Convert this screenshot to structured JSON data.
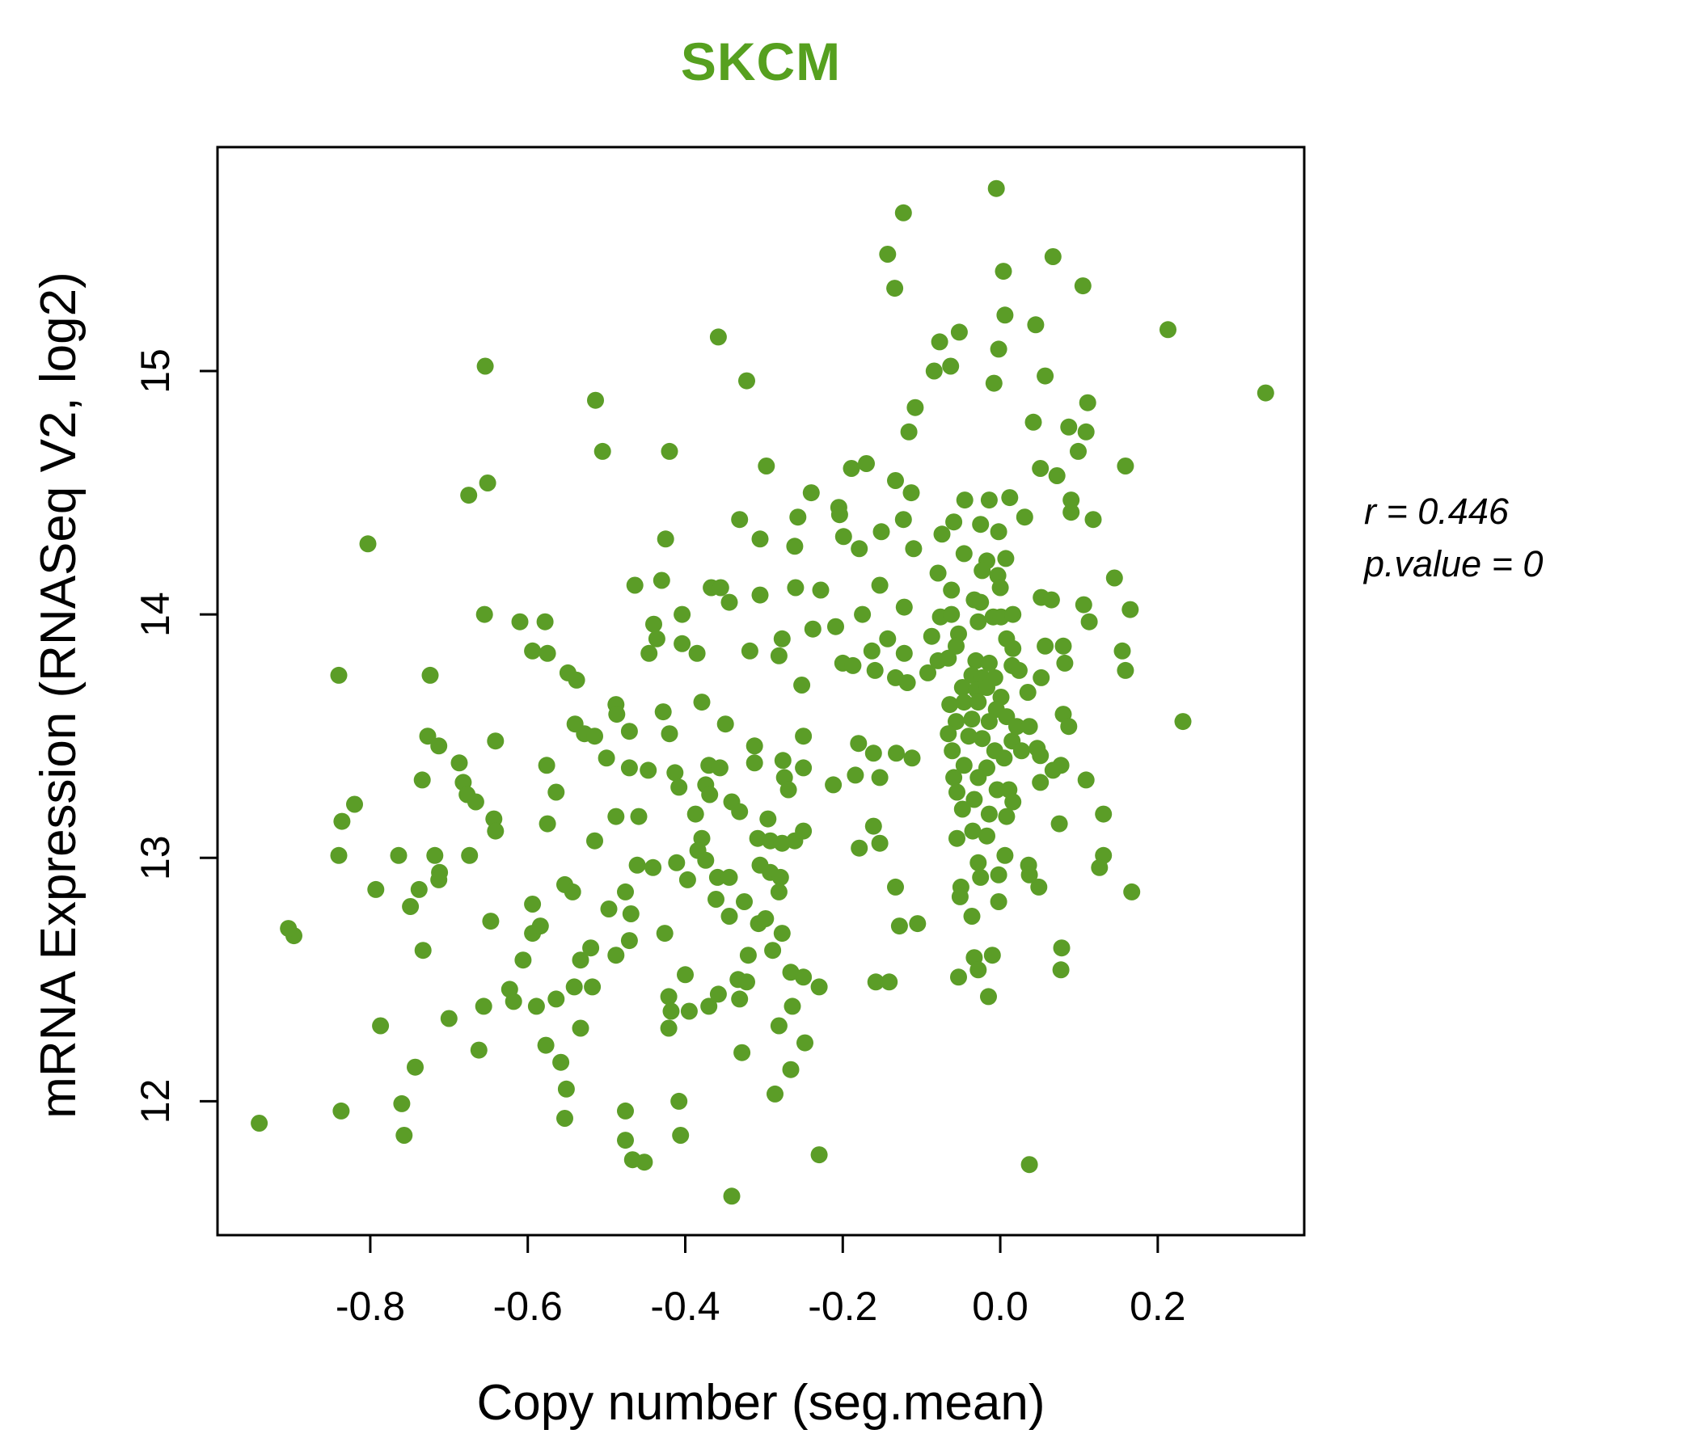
{
  "title": "SKCM",
  "title_color": "#56a01f",
  "annotation": {
    "line1": "r = 0.446",
    "line2": "p.value = 0"
  },
  "chart_data": {
    "type": "scatter",
    "title": "SKCM",
    "xlabel": "Copy number (seg.mean)",
    "ylabel": "mRNA Expression (RNASeq V2, log2)",
    "xlim": [
      -0.994,
      0.386
    ],
    "ylim": [
      11.45,
      15.92
    ],
    "x_ticks": [
      -0.8,
      -0.6,
      -0.4,
      -0.2,
      0.0,
      0.2
    ],
    "x_tick_labels": [
      "-0.8",
      "-0.6",
      "-0.4",
      "-0.2",
      "0.0",
      "0.2"
    ],
    "y_ticks": [
      12,
      13,
      14,
      15
    ],
    "y_tick_labels": [
      "12",
      "13",
      "14",
      "15"
    ],
    "grid": false,
    "legend": "none",
    "point_color": "#5b9d27",
    "point_radius_px": 10.5,
    "correlation": {
      "r": 0.446,
      "p_value": 0
    },
    "points": [
      [
        -0.654,
        15.02
      ],
      [
        -0.651,
        14.54
      ],
      [
        -0.675,
        14.49
      ],
      [
        -0.123,
        15.65
      ],
      [
        -0.143,
        15.48
      ],
      [
        -0.134,
        15.34
      ],
      [
        -0.358,
        15.14
      ],
      [
        -0.077,
        15.12
      ],
      [
        -0.084,
        15.0
      ],
      [
        -0.322,
        14.96
      ],
      [
        -0.514,
        14.88
      ],
      [
        -0.108,
        14.85
      ],
      [
        -0.116,
        14.75
      ],
      [
        -0.505,
        14.67
      ],
      [
        -0.42,
        14.67
      ],
      [
        -0.297,
        14.61
      ],
      [
        -0.189,
        14.6
      ],
      [
        -0.17,
        14.62
      ],
      [
        -0.133,
        14.55
      ],
      [
        -0.113,
        14.5
      ],
      [
        -0.24,
        14.5
      ],
      [
        -0.205,
        14.44
      ],
      [
        -0.005,
        15.75
      ],
      [
        0.067,
        15.47
      ],
      [
        0.004,
        15.41
      ],
      [
        0.105,
        15.35
      ],
      [
        0.006,
        15.23
      ],
      [
        0.045,
        15.19
      ],
      [
        -0.052,
        15.16
      ],
      [
        0.213,
        15.17
      ],
      [
        -0.063,
        15.02
      ],
      [
        -0.002,
        15.09
      ],
      [
        -0.008,
        14.95
      ],
      [
        0.057,
        14.98
      ],
      [
        0.337,
        14.91
      ],
      [
        0.111,
        14.87
      ],
      [
        0.042,
        14.79
      ],
      [
        0.087,
        14.77
      ],
      [
        0.109,
        14.75
      ],
      [
        0.099,
        14.67
      ],
      [
        0.051,
        14.6
      ],
      [
        0.072,
        14.57
      ],
      [
        0.159,
        14.61
      ],
      [
        -0.045,
        14.47
      ],
      [
        -0.014,
        14.47
      ],
      [
        0.012,
        14.48
      ],
      [
        0.09,
        14.47
      ],
      [
        -0.803,
        14.29
      ],
      [
        -0.655,
        14.0
      ],
      [
        -0.61,
        13.97
      ],
      [
        -0.578,
        13.97
      ],
      [
        -0.594,
        13.85
      ],
      [
        -0.575,
        13.84
      ],
      [
        -0.549,
        13.76
      ],
      [
        -0.538,
        13.73
      ],
      [
        -0.84,
        13.75
      ],
      [
        -0.724,
        13.75
      ],
      [
        -0.727,
        13.5
      ],
      [
        -0.713,
        13.46
      ],
      [
        -0.54,
        13.55
      ],
      [
        -0.641,
        13.48
      ],
      [
        -0.687,
        13.39
      ],
      [
        -0.682,
        13.31
      ],
      [
        -0.677,
        13.26
      ],
      [
        -0.666,
        13.23
      ],
      [
        -0.734,
        13.32
      ],
      [
        -0.643,
        13.16
      ],
      [
        -0.641,
        13.11
      ],
      [
        -0.576,
        13.38
      ],
      [
        -0.564,
        13.27
      ],
      [
        -0.575,
        13.14
      ],
      [
        -0.82,
        13.22
      ],
      [
        -0.836,
        13.15
      ],
      [
        -0.84,
        13.01
      ],
      [
        -0.764,
        13.01
      ],
      [
        -0.718,
        13.01
      ],
      [
        -0.674,
        13.01
      ],
      [
        -0.712,
        12.94
      ],
      [
        -0.331,
        14.39
      ],
      [
        -0.257,
        14.4
      ],
      [
        -0.204,
        14.41
      ],
      [
        -0.123,
        14.39
      ],
      [
        -0.425,
        14.31
      ],
      [
        -0.305,
        14.31
      ],
      [
        -0.261,
        14.28
      ],
      [
        -0.199,
        14.32
      ],
      [
        -0.179,
        14.27
      ],
      [
        -0.151,
        14.34
      ],
      [
        -0.11,
        14.27
      ],
      [
        -0.074,
        14.33
      ],
      [
        -0.464,
        14.12
      ],
      [
        -0.43,
        14.14
      ],
      [
        -0.367,
        14.11
      ],
      [
        -0.355,
        14.11
      ],
      [
        -0.344,
        14.05
      ],
      [
        -0.305,
        14.08
      ],
      [
        -0.26,
        14.11
      ],
      [
        -0.228,
        14.1
      ],
      [
        -0.153,
        14.12
      ],
      [
        -0.122,
        14.03
      ],
      [
        -0.079,
        14.17
      ],
      [
        -0.404,
        14.0
      ],
      [
        -0.44,
        13.96
      ],
      [
        -0.436,
        13.9
      ],
      [
        -0.404,
        13.88
      ],
      [
        -0.385,
        13.84
      ],
      [
        -0.446,
        13.84
      ],
      [
        -0.318,
        13.85
      ],
      [
        -0.281,
        13.83
      ],
      [
        -0.277,
        13.9
      ],
      [
        -0.238,
        13.94
      ],
      [
        -0.209,
        13.95
      ],
      [
        -0.175,
        14.0
      ],
      [
        -0.143,
        13.9
      ],
      [
        -0.163,
        13.85
      ],
      [
        -0.122,
        13.84
      ],
      [
        -0.087,
        13.91
      ],
      [
        -0.076,
        13.99
      ],
      [
        -0.2,
        13.8
      ],
      [
        -0.187,
        13.79
      ],
      [
        -0.159,
        13.77
      ],
      [
        -0.133,
        13.74
      ],
      [
        -0.118,
        13.72
      ],
      [
        -0.092,
        13.76
      ],
      [
        -0.079,
        13.81
      ],
      [
        -0.252,
        13.71
      ],
      [
        -0.488,
        13.63
      ],
      [
        -0.487,
        13.59
      ],
      [
        -0.428,
        13.6
      ],
      [
        -0.379,
        13.64
      ],
      [
        -0.349,
        13.55
      ],
      [
        -0.471,
        13.52
      ],
      [
        -0.42,
        13.51
      ],
      [
        -0.528,
        13.51
      ],
      [
        -0.515,
        13.5
      ],
      [
        -0.25,
        13.5
      ],
      [
        -0.18,
        13.47
      ],
      [
        -0.161,
        13.43
      ],
      [
        -0.132,
        13.43
      ],
      [
        -0.112,
        13.41
      ],
      [
        -0.5,
        13.41
      ],
      [
        -0.471,
        13.37
      ],
      [
        -0.447,
        13.36
      ],
      [
        -0.413,
        13.35
      ],
      [
        -0.408,
        13.29
      ],
      [
        -0.37,
        13.38
      ],
      [
        -0.356,
        13.37
      ],
      [
        -0.374,
        13.3
      ],
      [
        -0.369,
        13.26
      ],
      [
        -0.312,
        13.46
      ],
      [
        -0.312,
        13.39
      ],
      [
        -0.276,
        13.4
      ],
      [
        -0.274,
        13.33
      ],
      [
        -0.269,
        13.28
      ],
      [
        -0.25,
        13.37
      ],
      [
        -0.212,
        13.3
      ],
      [
        -0.184,
        13.34
      ],
      [
        -0.153,
        13.33
      ],
      [
        -0.341,
        13.23
      ],
      [
        -0.331,
        13.19
      ],
      [
        -0.295,
        13.16
      ],
      [
        -0.387,
        13.18
      ],
      [
        -0.488,
        13.17
      ],
      [
        -0.459,
        13.17
      ],
      [
        -0.515,
        13.07
      ],
      [
        -0.379,
        13.08
      ],
      [
        -0.384,
        13.03
      ],
      [
        -0.374,
        12.99
      ],
      [
        -0.308,
        13.08
      ],
      [
        -0.292,
        13.07
      ],
      [
        -0.277,
        13.06
      ],
      [
        -0.261,
        13.07
      ],
      [
        -0.25,
        13.11
      ],
      [
        -0.461,
        12.97
      ],
      [
        -0.441,
        12.96
      ],
      [
        -0.411,
        12.98
      ],
      [
        -0.305,
        12.97
      ],
      [
        -0.292,
        12.94
      ],
      [
        -0.161,
        13.13
      ],
      [
        -0.153,
        13.06
      ],
      [
        -0.179,
        13.04
      ],
      [
        -0.059,
        14.38
      ],
      [
        -0.025,
        14.37
      ],
      [
        -0.002,
        14.34
      ],
      [
        0.031,
        14.4
      ],
      [
        0.09,
        14.42
      ],
      [
        0.118,
        14.39
      ],
      [
        -0.046,
        14.25
      ],
      [
        -0.017,
        14.22
      ],
      [
        0.007,
        14.23
      ],
      [
        -0.023,
        14.18
      ],
      [
        -0.003,
        14.16
      ],
      [
        0.0,
        14.11
      ],
      [
        0.145,
        14.15
      ],
      [
        -0.062,
        14.1
      ],
      [
        -0.033,
        14.06
      ],
      [
        -0.025,
        14.05
      ],
      [
        0.052,
        14.07
      ],
      [
        0.065,
        14.06
      ],
      [
        0.106,
        14.04
      ],
      [
        0.113,
        13.97
      ],
      [
        0.165,
        14.02
      ],
      [
        -0.062,
        14.0
      ],
      [
        -0.053,
        13.92
      ],
      [
        -0.028,
        13.97
      ],
      [
        -0.009,
        13.99
      ],
      [
        0.001,
        13.99
      ],
      [
        0.016,
        14.0
      ],
      [
        -0.056,
        13.87
      ],
      [
        -0.066,
        13.82
      ],
      [
        0.008,
        13.9
      ],
      [
        0.016,
        13.86
      ],
      [
        0.057,
        13.87
      ],
      [
        0.08,
        13.87
      ],
      [
        0.082,
        13.8
      ],
      [
        0.155,
        13.85
      ],
      [
        0.159,
        13.77
      ],
      [
        -0.031,
        13.81
      ],
      [
        -0.014,
        13.8
      ],
      [
        -0.036,
        13.75
      ],
      [
        -0.023,
        13.74
      ],
      [
        -0.007,
        13.74
      ],
      [
        0.015,
        13.79
      ],
      [
        0.024,
        13.77
      ],
      [
        0.052,
        13.74
      ],
      [
        -0.048,
        13.7
      ],
      [
        -0.03,
        13.69
      ],
      [
        -0.017,
        13.7
      ],
      [
        -0.046,
        13.64
      ],
      [
        -0.028,
        13.64
      ],
      [
        -0.064,
        13.63
      ],
      [
        0.001,
        13.66
      ],
      [
        0.035,
        13.68
      ],
      [
        -0.005,
        13.61
      ],
      [
        0.008,
        13.58
      ],
      [
        -0.014,
        13.56
      ],
      [
        -0.036,
        13.57
      ],
      [
        -0.056,
        13.56
      ],
      [
        -0.066,
        13.51
      ],
      [
        -0.04,
        13.5
      ],
      [
        -0.023,
        13.49
      ],
      [
        0.021,
        13.54
      ],
      [
        0.037,
        13.54
      ],
      [
        0.015,
        13.48
      ],
      [
        0.08,
        13.59
      ],
      [
        0.087,
        13.54
      ],
      [
        0.232,
        13.56
      ],
      [
        -0.061,
        13.44
      ],
      [
        -0.007,
        13.44
      ],
      [
        0.005,
        13.41
      ],
      [
        -0.017,
        13.37
      ],
      [
        -0.046,
        13.38
      ],
      [
        0.027,
        13.44
      ],
      [
        0.047,
        13.45
      ],
      [
        0.051,
        13.42
      ],
      [
        0.077,
        13.38
      ],
      [
        0.109,
        13.32
      ],
      [
        -0.059,
        13.33
      ],
      [
        -0.028,
        13.33
      ],
      [
        -0.055,
        13.27
      ],
      [
        -0.033,
        13.24
      ],
      [
        -0.004,
        13.28
      ],
      [
        0.011,
        13.28
      ],
      [
        0.051,
        13.31
      ],
      [
        0.067,
        13.36
      ],
      [
        -0.048,
        13.2
      ],
      [
        -0.014,
        13.18
      ],
      [
        0.008,
        13.17
      ],
      [
        0.016,
        13.23
      ],
      [
        0.075,
        13.14
      ],
      [
        0.131,
        13.18
      ],
      [
        0.131,
        13.01
      ],
      [
        -0.035,
        13.11
      ],
      [
        -0.017,
        13.09
      ],
      [
        -0.055,
        13.08
      ],
      [
        0.006,
        13.01
      ],
      [
        -0.028,
        12.98
      ],
      [
        0.036,
        12.97
      ],
      [
        0.126,
        12.96
      ],
      [
        -0.793,
        12.87
      ],
      [
        -0.738,
        12.87
      ],
      [
        -0.713,
        12.91
      ],
      [
        -0.749,
        12.8
      ],
      [
        -0.594,
        12.81
      ],
      [
        -0.647,
        12.74
      ],
      [
        -0.594,
        12.69
      ],
      [
        -0.584,
        12.72
      ],
      [
        -0.897,
        12.68
      ],
      [
        -0.733,
        12.62
      ],
      [
        -0.553,
        12.89
      ],
      [
        -0.543,
        12.86
      ],
      [
        -0.606,
        12.58
      ],
      [
        -0.533,
        12.58
      ],
      [
        -0.623,
        12.46
      ],
      [
        -0.618,
        12.41
      ],
      [
        -0.589,
        12.39
      ],
      [
        -0.564,
        12.42
      ],
      [
        -0.656,
        12.39
      ],
      [
        -0.541,
        12.47
      ],
      [
        -0.787,
        12.31
      ],
      [
        -0.7,
        12.34
      ],
      [
        -0.662,
        12.21
      ],
      [
        -0.577,
        12.23
      ],
      [
        -0.558,
        12.16
      ],
      [
        -0.533,
        12.3
      ],
      [
        -0.743,
        12.14
      ],
      [
        -0.551,
        12.05
      ],
      [
        -0.837,
        11.96
      ],
      [
        -0.941,
        11.91
      ],
      [
        -0.76,
        11.99
      ],
      [
        -0.757,
        11.86
      ],
      [
        -0.553,
        11.93
      ],
      [
        -0.904,
        12.71
      ],
      [
        -0.397,
        12.91
      ],
      [
        -0.359,
        12.92
      ],
      [
        -0.344,
        12.92
      ],
      [
        -0.279,
        12.92
      ],
      [
        -0.476,
        12.86
      ],
      [
        -0.497,
        12.79
      ],
      [
        -0.469,
        12.77
      ],
      [
        -0.361,
        12.83
      ],
      [
        -0.325,
        12.82
      ],
      [
        -0.344,
        12.76
      ],
      [
        -0.307,
        12.73
      ],
      [
        -0.298,
        12.75
      ],
      [
        -0.281,
        12.86
      ],
      [
        -0.277,
        12.69
      ],
      [
        -0.426,
        12.69
      ],
      [
        -0.133,
        12.88
      ],
      [
        -0.128,
        12.72
      ],
      [
        -0.105,
        12.73
      ],
      [
        -0.52,
        12.63
      ],
      [
        -0.471,
        12.66
      ],
      [
        -0.488,
        12.6
      ],
      [
        -0.32,
        12.6
      ],
      [
        -0.289,
        12.62
      ],
      [
        -0.4,
        12.52
      ],
      [
        -0.518,
        12.47
      ],
      [
        -0.333,
        12.5
      ],
      [
        -0.322,
        12.49
      ],
      [
        -0.266,
        12.53
      ],
      [
        -0.25,
        12.51
      ],
      [
        -0.23,
        12.47
      ],
      [
        -0.158,
        12.49
      ],
      [
        -0.141,
        12.49
      ],
      [
        -0.421,
        12.43
      ],
      [
        -0.418,
        12.37
      ],
      [
        -0.395,
        12.37
      ],
      [
        -0.37,
        12.39
      ],
      [
        -0.358,
        12.44
      ],
      [
        -0.331,
        12.42
      ],
      [
        -0.421,
        12.3
      ],
      [
        -0.264,
        12.39
      ],
      [
        -0.281,
        12.31
      ],
      [
        -0.248,
        12.24
      ],
      [
        -0.328,
        12.2
      ],
      [
        -0.266,
        12.13
      ],
      [
        -0.286,
        12.03
      ],
      [
        -0.408,
        12.0
      ],
      [
        -0.476,
        11.96
      ],
      [
        -0.406,
        11.86
      ],
      [
        -0.476,
        11.84
      ],
      [
        -0.467,
        11.76
      ],
      [
        -0.452,
        11.75
      ],
      [
        -0.23,
        11.78
      ],
      [
        -0.341,
        11.61
      ],
      [
        -0.05,
        12.88
      ],
      [
        -0.051,
        12.84
      ],
      [
        -0.002,
        12.82
      ],
      [
        0.049,
        12.88
      ],
      [
        -0.036,
        12.76
      ],
      [
        0.167,
        12.86
      ],
      [
        -0.033,
        12.59
      ],
      [
        -0.01,
        12.6
      ],
      [
        -0.028,
        12.54
      ],
      [
        -0.053,
        12.51
      ],
      [
        0.078,
        12.63
      ],
      [
        0.077,
        12.54
      ],
      [
        -0.015,
        12.43
      ],
      [
        0.037,
        11.74
      ],
      [
        -0.025,
        12.92
      ],
      [
        -0.002,
        12.93
      ],
      [
        0.037,
        12.93
      ]
    ]
  }
}
